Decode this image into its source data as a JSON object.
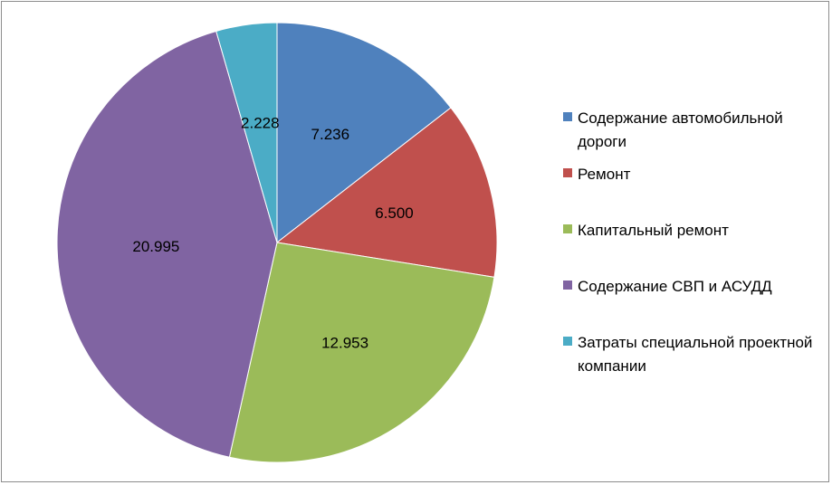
{
  "chart_data": {
    "type": "pie",
    "title": "",
    "categories": [
      "Содержание автомобильной дороги",
      "Ремонт",
      "Капитальный ремонт",
      "Содержание СВП и АСУДД",
      "Затраты специальной проектной компании"
    ],
    "values": [
      7.236,
      6.5,
      12.953,
      20.995,
      2.228
    ],
    "value_labels": [
      "7.236",
      "6.500",
      "12.953",
      "20.995",
      "2.228"
    ],
    "colors": [
      "#4f81bd",
      "#c0504d",
      "#9bbb59",
      "#8064a2",
      "#4bacc6"
    ],
    "start_angle": "12 o'clock",
    "direction": "clockwise",
    "legend_position": "right"
  }
}
